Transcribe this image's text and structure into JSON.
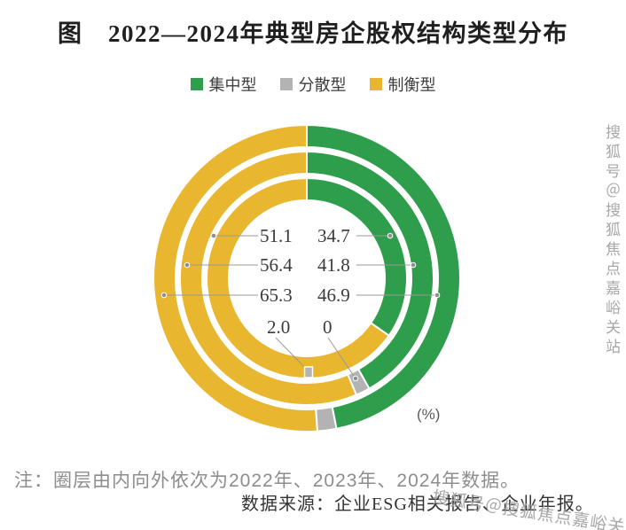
{
  "title": "图　2022—2024年典型房企股权结构类型分布",
  "legend": {
    "items": [
      {
        "label": "集中型",
        "color": "#2F9E4C"
      },
      {
        "label": "分散型",
        "color": "#B3B3B3"
      },
      {
        "label": "制衡型",
        "color": "#E9B62F"
      }
    ]
  },
  "unit_label": "(%)",
  "note": "注：圈层由内向外依次为2022年、2023年、2024年数据。",
  "source": "数据来源：企业ESG相关报告、企业年报。",
  "watermark": {
    "text": "搜狐号＠搜狐焦点嘉峪关站"
  },
  "chart_data": {
    "type": "pie",
    "subtype": "concentric-donut-3-rings",
    "title": "2022—2024年典型房企股权结构类型分布",
    "unit": "%",
    "legend_position": "top",
    "categories": [
      "集中型",
      "分散型",
      "制衡型"
    ],
    "colors": [
      "#2F9E4C",
      "#B3B3B3",
      "#E9B62F"
    ],
    "rings": [
      {
        "year": "2022年",
        "position": "inner",
        "values": [
          34.7,
          0,
          65.3
        ]
      },
      {
        "year": "2023年",
        "position": "middle",
        "values": [
          41.8,
          1.8,
          56.4
        ]
      },
      {
        "year": "2024年",
        "position": "outer",
        "values": [
          46.9,
          2.0,
          51.1
        ]
      }
    ],
    "labels": {
      "left_column": [
        "51.1",
        "56.4",
        "65.3",
        "2.0"
      ],
      "right_column": [
        "34.7",
        "41.8",
        "46.9",
        "0"
      ]
    }
  }
}
